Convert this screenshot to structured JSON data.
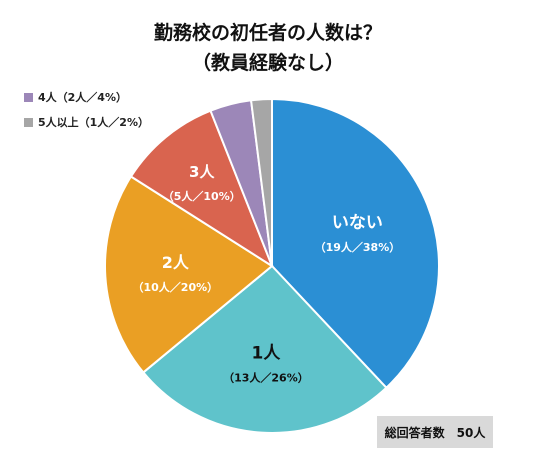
{
  "chart_data": {
    "type": "pie",
    "title": "勤務校の初任者の人数は？",
    "subtitle": "（教員経験なし）",
    "slices": [
      {
        "category": "いない",
        "count_label": "（19人／38%）",
        "value": 38,
        "color": "#2b8fd4",
        "label_color": "#ffffff"
      },
      {
        "category": "1人",
        "count_label": "（13人／26%）",
        "value": 26,
        "color": "#5fc3cb",
        "label_color": "#111111"
      },
      {
        "category": "2人",
        "count_label": "（10人／20%）",
        "value": 20,
        "color": "#ea9f24",
        "label_color": "#ffffff"
      },
      {
        "category": "3人",
        "count_label": "（5人／10%）",
        "value": 10,
        "color": "#d9644f",
        "label_color": "#ffffff"
      },
      {
        "category": "4人",
        "count_label": "（2人／4%）",
        "value": 4,
        "color": "#9c87b8",
        "label_color": "#ffffff"
      },
      {
        "category": "5人以上",
        "count_label": "（1人／2%）",
        "value": 2,
        "color": "#a6a6a6",
        "label_color": "#ffffff"
      }
    ],
    "legend": [
      {
        "label": "4人（2人／4%）",
        "color": "#9c87b8"
      },
      {
        "label": "5人以上（1人／2%）",
        "color": "#a6a6a6"
      }
    ],
    "legend_position": "top-left",
    "start_angle": "top",
    "direction": "clockwise"
  },
  "footer_note": "総回答者数　50人"
}
